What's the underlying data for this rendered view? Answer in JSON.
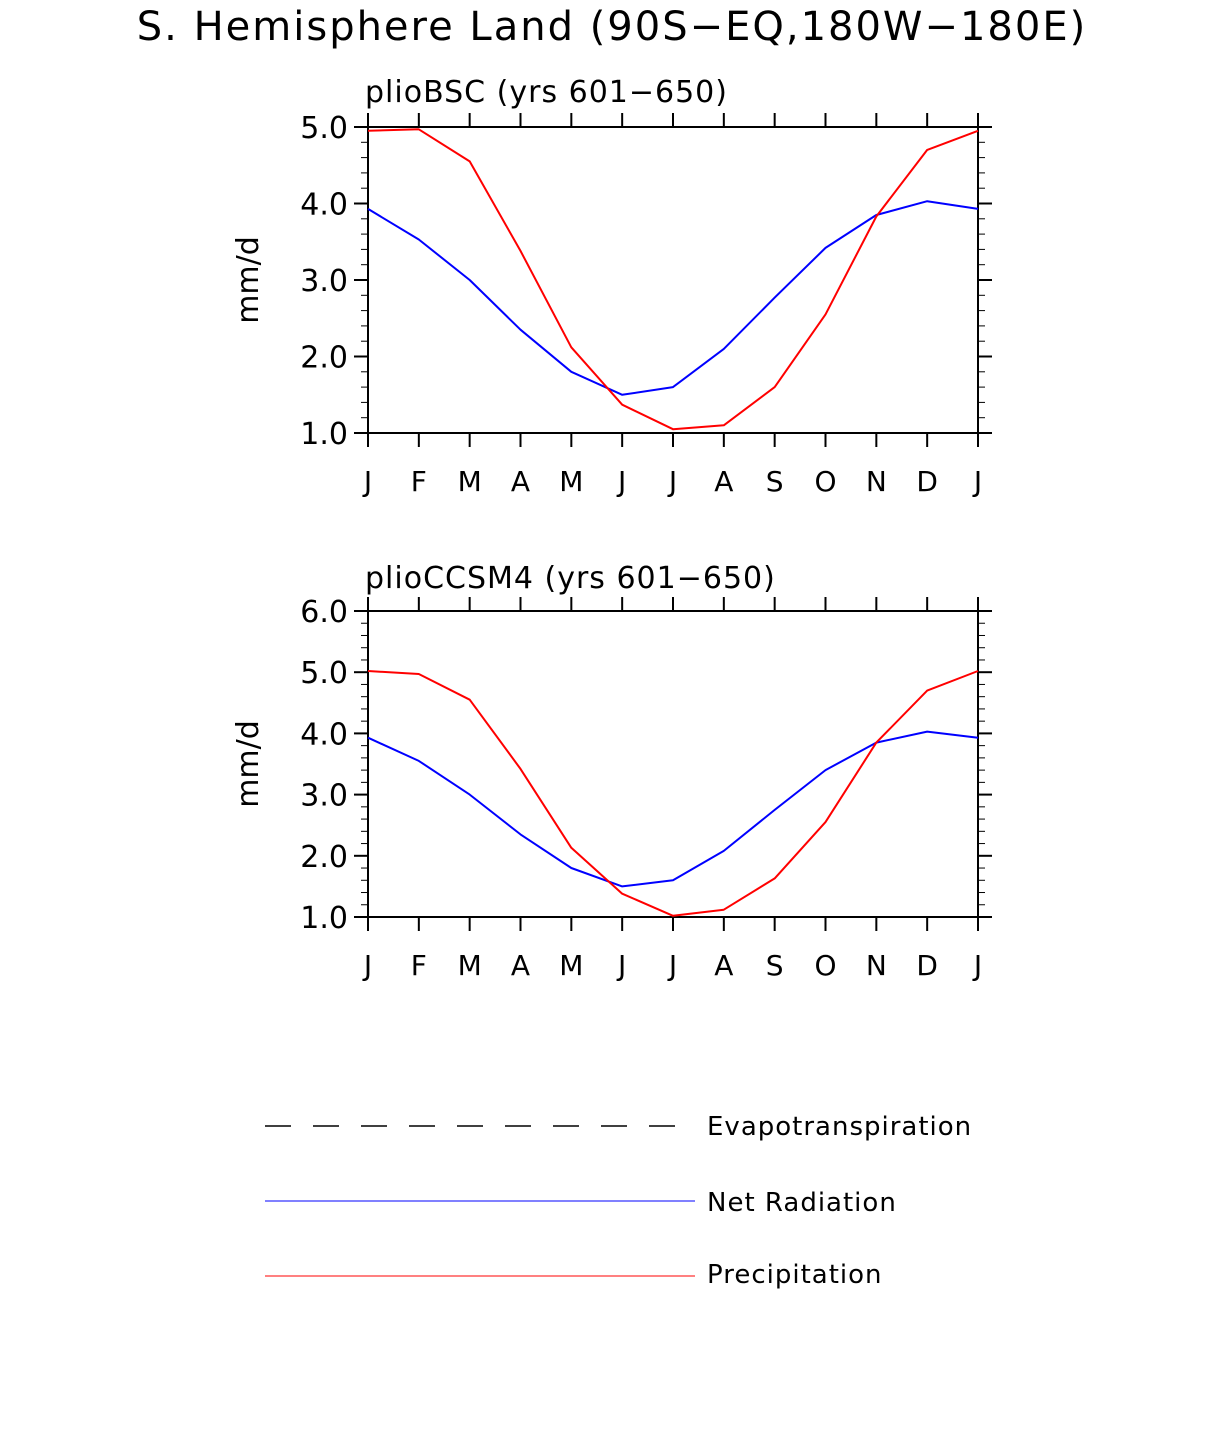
{
  "figure": {
    "title": "S. Hemisphere Land (90S−EQ,180W−180E)"
  },
  "legend": {
    "items": [
      {
        "label": "Evapotranspiration",
        "color": "#000000",
        "style": "dashed"
      },
      {
        "label": "Net Radiation",
        "color": "#0000ff",
        "style": "solid"
      },
      {
        "label": "Precipitation",
        "color": "#ff0000",
        "style": "solid"
      }
    ]
  },
  "chart_data": [
    {
      "type": "line",
      "title": "plioBSC (yrs 601−650)",
      "xlabel": "",
      "ylabel": "mm/d",
      "categories": [
        "J",
        "F",
        "M",
        "A",
        "M",
        "J",
        "J",
        "A",
        "S",
        "O",
        "N",
        "D",
        "J"
      ],
      "ylim": [
        1.0,
        5.0
      ],
      "yticks": [
        "1.0",
        "2.0",
        "3.0",
        "4.0",
        "5.0"
      ],
      "series": [
        {
          "name": "Net Radiation",
          "color": "#0000ff",
          "values": [
            3.93,
            3.53,
            3.0,
            2.35,
            1.8,
            1.5,
            1.6,
            2.1,
            2.77,
            3.42,
            3.85,
            4.03,
            3.93
          ]
        },
        {
          "name": "Precipitation",
          "color": "#ff0000",
          "values": [
            4.95,
            4.97,
            4.55,
            3.38,
            2.12,
            1.37,
            1.05,
            1.1,
            1.6,
            2.55,
            3.83,
            4.7,
            4.95
          ]
        }
      ]
    },
    {
      "type": "line",
      "title": "plioCCSM4 (yrs 601−650)",
      "xlabel": "",
      "ylabel": "mm/d",
      "categories": [
        "J",
        "F",
        "M",
        "A",
        "M",
        "J",
        "J",
        "A",
        "S",
        "O",
        "N",
        "D",
        "J"
      ],
      "ylim": [
        1.0,
        6.0
      ],
      "yticks": [
        "1.0",
        "2.0",
        "3.0",
        "4.0",
        "5.0",
        "6.0"
      ],
      "series": [
        {
          "name": "Net Radiation",
          "color": "#0000ff",
          "values": [
            3.93,
            3.55,
            3.0,
            2.35,
            1.8,
            1.5,
            1.6,
            2.08,
            2.75,
            3.4,
            3.85,
            4.03,
            3.93
          ]
        },
        {
          "name": "Precipitation",
          "color": "#ff0000",
          "values": [
            5.02,
            4.97,
            4.55,
            3.42,
            2.13,
            1.38,
            1.02,
            1.12,
            1.63,
            2.55,
            3.85,
            4.7,
            5.02
          ]
        }
      ]
    }
  ]
}
